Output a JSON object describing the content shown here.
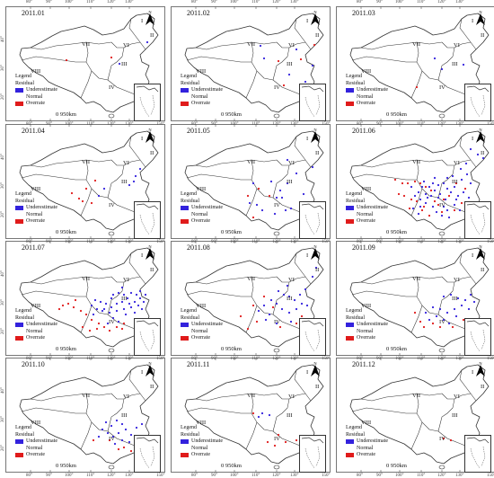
{
  "axis_labels": {
    "x_ticks": [
      "80°",
      "90°",
      "100°",
      "110°",
      "120°",
      "130°"
    ],
    "y_ticks": [
      "40°",
      "30°",
      "20°"
    ],
    "x_ticks_right": [
      "150°"
    ]
  },
  "legend": {
    "title": "Legend",
    "subtitle": "Residual",
    "items": [
      {
        "label": "Underestimate",
        "color": "#3322dd"
      },
      {
        "label": "Normal",
        "color": "none"
      },
      {
        "label": "Overrate",
        "color": "#e01b1b"
      }
    ]
  },
  "scale_bar": {
    "label": "0      950km"
  },
  "regions": [
    "I",
    "II",
    "III",
    "IV",
    "V",
    "VI",
    "VII",
    "VIII"
  ],
  "colors": {
    "underestimate": "#3322dd",
    "overrate": "#e01b1b",
    "border": "#333333"
  },
  "panels": [
    {
      "title": "2011.01",
      "blue": [
        [
          158,
          40
        ],
        [
          127,
          64
        ]
      ],
      "red": [
        [
          118,
          57
        ],
        [
          68,
          60
        ]
      ]
    },
    {
      "title": "2011.02",
      "blue": [
        [
          140,
          48
        ],
        [
          100,
          44
        ],
        [
          104,
          58
        ],
        [
          132,
          76
        ],
        [
          150,
          84
        ],
        [
          158,
          66
        ]
      ],
      "red": [
        [
          120,
          61
        ],
        [
          160,
          43
        ],
        [
          145,
          59
        ],
        [
          126,
          88
        ]
      ]
    },
    {
      "title": "2011.03",
      "blue": [
        [
          118,
          70
        ],
        [
          142,
          65
        ],
        [
          110,
          58
        ]
      ],
      "red": [
        [
          90,
          90
        ]
      ]
    },
    {
      "title": "2011.04",
      "blue": [
        [
          145,
          58
        ],
        [
          150,
          50
        ],
        [
          143,
          64
        ],
        [
          138,
          68
        ],
        [
          110,
          72
        ],
        [
          104,
          80
        ]
      ],
      "red": [
        [
          74,
          77
        ],
        [
          86,
          86
        ],
        [
          90,
          72
        ],
        [
          96,
          88
        ],
        [
          82,
          83
        ],
        [
          100,
          63
        ]
      ]
    },
    {
      "title": "2011.05",
      "blue": [
        [
          130,
          40
        ],
        [
          112,
          64
        ],
        [
          96,
          90
        ],
        [
          124,
          82
        ],
        [
          140,
          55
        ],
        [
          158,
          48
        ],
        [
          148,
          78
        ],
        [
          134,
          94
        ],
        [
          116,
          100
        ],
        [
          102,
          96
        ],
        [
          92,
          66
        ],
        [
          122,
          74
        ],
        [
          130,
          66
        ],
        [
          118,
          82
        ],
        [
          88,
          88
        ],
        [
          128,
          96
        ]
      ],
      "red": [
        [
          98,
          72
        ],
        [
          86,
          80
        ],
        [
          92,
          104
        ],
        [
          110,
          80
        ]
      ]
    },
    {
      "title": "2011.06",
      "blue": [
        [
          150,
          28
        ],
        [
          158,
          34
        ],
        [
          164,
          38
        ],
        [
          145,
          44
        ],
        [
          139,
          50
        ],
        [
          130,
          58
        ],
        [
          124,
          60
        ],
        [
          120,
          66
        ],
        [
          114,
          68
        ],
        [
          110,
          74
        ],
        [
          104,
          70
        ],
        [
          96,
          70
        ],
        [
          92,
          76
        ],
        [
          88,
          80
        ],
        [
          94,
          84
        ],
        [
          100,
          88
        ],
        [
          108,
          92
        ],
        [
          112,
          98
        ],
        [
          118,
          102
        ],
        [
          124,
          96
        ],
        [
          132,
          90
        ],
        [
          136,
          80
        ],
        [
          128,
          76
        ],
        [
          122,
          84
        ],
        [
          114,
          82
        ],
        [
          106,
          80
        ],
        [
          100,
          78
        ],
        [
          94,
          92
        ],
        [
          86,
          94
        ],
        [
          84,
          70
        ],
        [
          98,
          64
        ],
        [
          110,
          60
        ],
        [
          124,
          72
        ],
        [
          132,
          70
        ],
        [
          140,
          62
        ],
        [
          146,
          56
        ],
        [
          150,
          66
        ],
        [
          142,
          76
        ],
        [
          134,
          84
        ],
        [
          120,
          92
        ],
        [
          116,
          78
        ],
        [
          108,
          66
        ],
        [
          102,
          82
        ],
        [
          92,
          100
        ],
        [
          126,
          104
        ],
        [
          138,
          96
        ],
        [
          148,
          82
        ]
      ],
      "red": [
        [
          66,
          62
        ],
        [
          74,
          66
        ],
        [
          80,
          66
        ],
        [
          88,
          64
        ],
        [
          94,
          66
        ],
        [
          100,
          70
        ],
        [
          106,
          74
        ],
        [
          110,
          86
        ],
        [
          114,
          90
        ],
        [
          120,
          84
        ],
        [
          98,
          92
        ],
        [
          104,
          102
        ],
        [
          96,
          96
        ],
        [
          90,
          86
        ],
        [
          84,
          84
        ],
        [
          76,
          80
        ],
        [
          70,
          78
        ],
        [
          82,
          94
        ],
        [
          118,
          98
        ],
        [
          126,
          80
        ],
        [
          132,
          96
        ],
        [
          140,
          88
        ],
        [
          144,
          72
        ],
        [
          134,
          66
        ]
      ]
    },
    {
      "title": "2011.07",
      "blue": [
        [
          120,
          60
        ],
        [
          126,
          58
        ],
        [
          132,
          60
        ],
        [
          136,
          64
        ],
        [
          140,
          58
        ],
        [
          146,
          60
        ],
        [
          150,
          64
        ],
        [
          144,
          68
        ],
        [
          138,
          70
        ],
        [
          130,
          68
        ],
        [
          124,
          70
        ],
        [
          118,
          74
        ],
        [
          112,
          70
        ],
        [
          106,
          68
        ],
        [
          100,
          66
        ],
        [
          96,
          72
        ],
        [
          102,
          76
        ],
        [
          108,
          78
        ],
        [
          116,
          80
        ],
        [
          124,
          78
        ],
        [
          132,
          76
        ],
        [
          140,
          74
        ],
        [
          148,
          72
        ],
        [
          154,
          68
        ],
        [
          150,
          56
        ],
        [
          156,
          60
        ],
        [
          130,
          52
        ],
        [
          118,
          64
        ],
        [
          110,
          76
        ],
        [
          120,
          86
        ],
        [
          134,
          82
        ],
        [
          144,
          80
        ],
        [
          152,
          76
        ],
        [
          126,
          90
        ],
        [
          114,
          92
        ],
        [
          98,
          82
        ]
      ],
      "red": [
        [
          64,
          72
        ],
        [
          70,
          70
        ],
        [
          76,
          74
        ],
        [
          84,
          78
        ],
        [
          90,
          82
        ],
        [
          96,
          88
        ],
        [
          104,
          92
        ],
        [
          110,
          96
        ],
        [
          116,
          100
        ],
        [
          124,
          96
        ],
        [
          132,
          92
        ],
        [
          86,
          96
        ],
        [
          94,
          100
        ],
        [
          78,
          66
        ],
        [
          102,
          98
        ],
        [
          130,
          98
        ],
        [
          60,
          76
        ]
      ]
    },
    {
      "title": "2011.08",
      "blue": [
        [
          120,
          56
        ],
        [
          126,
          60
        ],
        [
          132,
          62
        ],
        [
          138,
          66
        ],
        [
          144,
          60
        ],
        [
          150,
          54
        ],
        [
          146,
          70
        ],
        [
          140,
          76
        ],
        [
          132,
          80
        ],
        [
          124,
          76
        ],
        [
          118,
          70
        ],
        [
          112,
          66
        ],
        [
          104,
          72
        ],
        [
          98,
          78
        ],
        [
          110,
          82
        ],
        [
          130,
          50
        ],
        [
          152,
          72
        ],
        [
          158,
          40
        ],
        [
          162,
          30
        ],
        [
          134,
          90
        ],
        [
          118,
          92
        ],
        [
          106,
          88
        ]
      ],
      "red": [
        [
          78,
          84
        ],
        [
          96,
          90
        ],
        [
          104,
          62
        ],
        [
          122,
          96
        ],
        [
          140,
          92
        ],
        [
          114,
          74
        ],
        [
          92,
          72
        ],
        [
          146,
          84
        ],
        [
          86,
          98
        ]
      ]
    },
    {
      "title": "2011.09",
      "blue": [
        [
          120,
          62
        ],
        [
          128,
          60
        ],
        [
          136,
          64
        ],
        [
          144,
          66
        ],
        [
          150,
          60
        ],
        [
          140,
          72
        ],
        [
          132,
          76
        ],
        [
          124,
          80
        ],
        [
          116,
          76
        ],
        [
          108,
          74
        ],
        [
          148,
          76
        ],
        [
          134,
          84
        ],
        [
          120,
          88
        ],
        [
          112,
          84
        ],
        [
          154,
          68
        ],
        [
          100,
          80
        ],
        [
          104,
          88
        ],
        [
          126,
          92
        ]
      ],
      "red": [
        [
          88,
          80
        ],
        [
          94,
          90
        ],
        [
          108,
          92
        ],
        [
          130,
          96
        ],
        [
          142,
          88
        ],
        [
          116,
          96
        ],
        [
          98,
          96
        ]
      ]
    },
    {
      "title": "2011.10",
      "blue": [
        [
          112,
          72
        ],
        [
          118,
          76
        ],
        [
          124,
          70
        ],
        [
          130,
          74
        ],
        [
          134,
          80
        ],
        [
          126,
          84
        ],
        [
          120,
          88
        ],
        [
          114,
          84
        ],
        [
          140,
          86
        ],
        [
          146,
          78
        ],
        [
          152,
          74
        ],
        [
          108,
          80
        ],
        [
          104,
          88
        ],
        [
          130,
          92
        ],
        [
          138,
          94
        ],
        [
          122,
          96
        ],
        [
          144,
          98
        ],
        [
          150,
          90
        ]
      ],
      "red": [
        [
          116,
          92
        ],
        [
          132,
          100
        ],
        [
          98,
          92
        ],
        [
          148,
          104
        ],
        [
          140,
          104
        ],
        [
          126,
          102
        ]
      ]
    },
    {
      "title": "2011.11",
      "blue": [
        [
          102,
          62
        ],
        [
          110,
          64
        ],
        [
          98,
          66
        ]
      ],
      "red": [
        [
          92,
          62
        ],
        [
          120,
          86
        ],
        [
          128,
          94
        ],
        [
          140,
          92
        ],
        [
          108,
          94
        ],
        [
          116,
          98
        ]
      ]
    },
    {
      "title": "2011.12",
      "blue": [],
      "red": [
        [
          120,
          90
        ],
        [
          128,
          92
        ]
      ]
    }
  ]
}
